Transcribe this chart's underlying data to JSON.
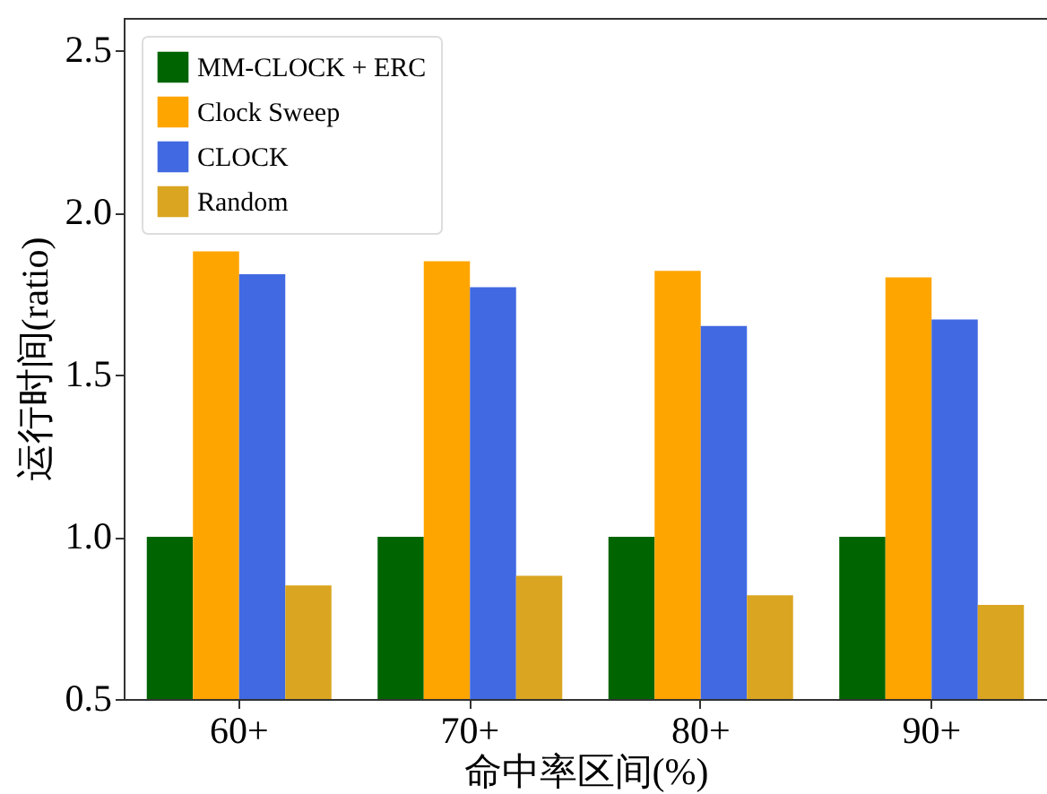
{
  "chart_data": {
    "type": "bar",
    "xlabel": "命中率区间(%)",
    "ylabel": "运行时间(ratio)",
    "categories": [
      "60+",
      "70+",
      "80+",
      "90+"
    ],
    "series": [
      {
        "name": "MM-CLOCK + ERC",
        "color": "#006400",
        "values": [
          1.0,
          1.0,
          1.0,
          1.0
        ]
      },
      {
        "name": "Clock Sweep",
        "color": "#ffa500",
        "values": [
          1.88,
          1.85,
          1.82,
          1.8
        ]
      },
      {
        "name": "CLOCK",
        "color": "#4169e1",
        "values": [
          1.81,
          1.77,
          1.65,
          1.67
        ]
      },
      {
        "name": "Random",
        "color": "#daa520",
        "values": [
          0.85,
          0.88,
          0.82,
          0.79
        ]
      }
    ],
    "ylim": [
      0.5,
      2.6
    ],
    "yticks": [
      0.5,
      {
        "value": 1,
        "label": "1.0"
      },
      1.5,
      {
        "value": 2,
        "label": "2.0"
      },
      2.5
    ],
    "grid": false,
    "legend": "top left"
  }
}
